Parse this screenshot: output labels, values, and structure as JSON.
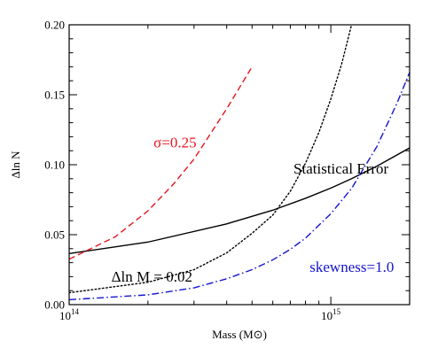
{
  "chart_data": {
    "type": "line",
    "title": "",
    "xlabel": "Mass (M⊙)",
    "ylabel": "Δln N",
    "xscale": "log",
    "xlim": [
      100000000000000.0,
      2000000000000000.0
    ],
    "ylim": [
      0.0,
      0.2
    ],
    "grid": false,
    "legend": "none",
    "x_ticks": [
      {
        "value": 100000000000000.0,
        "mantissa": "10",
        "exponent": "14"
      },
      {
        "value": 1000000000000000.0,
        "mantissa": "10",
        "exponent": "15"
      }
    ],
    "y_ticks": [
      {
        "value": 0.0,
        "label": "0.00"
      },
      {
        "value": 0.05,
        "label": "0.05"
      },
      {
        "value": 0.1,
        "label": "0.10"
      },
      {
        "value": 0.15,
        "label": "0.15"
      },
      {
        "value": 0.2,
        "label": "0.20"
      }
    ],
    "series": [
      {
        "color": "#000000",
        "dash": "solid",
        "x": [
          100000000000000.0,
          200000000000000.0,
          400000000000000.0,
          600000000000000.0,
          800000000000000.0,
          1000000000000000.0,
          1200000000000000.0,
          1500000000000000.0,
          2000000000000000.0
        ],
        "y": [
          0.0365,
          0.0447,
          0.0577,
          0.0675,
          0.076,
          0.0833,
          0.09,
          0.099,
          0.112
        ]
      },
      {
        "color": "#e8141e",
        "dash": "dashed",
        "x": [
          100000000000000.0,
          150000000000000.0,
          200000000000000.0,
          250000000000000.0,
          300000000000000.0,
          400000000000000.0,
          500000000000000.0
        ],
        "y": [
          0.0325,
          0.0485,
          0.067,
          0.086,
          0.104,
          0.14,
          0.17
        ]
      },
      {
        "color": "#000000",
        "dash": "dotted",
        "x": [
          100000000000000.0,
          200000000000000.0,
          300000000000000.0,
          400000000000000.0,
          500000000000000.0,
          600000000000000.0,
          700000000000000.0,
          800000000000000.0,
          900000000000000.0,
          1000000000000000.0,
          1100000000000000.0,
          1200000000000000.0
        ],
        "y": [
          0.0085,
          0.016,
          0.025,
          0.037,
          0.051,
          0.064,
          0.081,
          0.101,
          0.123,
          0.147,
          0.172,
          0.2
        ]
      },
      {
        "color": "#1414d2",
        "dash": "dash-dot",
        "x": [
          100000000000000.0,
          200000000000000.0,
          300000000000000.0,
          400000000000000.0,
          500000000000000.0,
          600000000000000.0,
          700000000000000.0,
          800000000000000.0,
          1000000000000000.0,
          1200000000000000.0,
          1500000000000000.0,
          1800000000000000.0,
          2000000000000000.0
        ],
        "y": [
          0.0035,
          0.007,
          0.012,
          0.0185,
          0.025,
          0.032,
          0.0395,
          0.0475,
          0.065,
          0.083,
          0.113,
          0.145,
          0.166
        ]
      }
    ],
    "annotations": [
      {
        "text": "σ=0.25",
        "color": "#e8141e",
        "x": 210000000000000.0,
        "y": 0.1125
      },
      {
        "text": "Statistical Error",
        "color": "#000000",
        "x": 720000000000000.0,
        "y": 0.0938
      },
      {
        "text": "Δln M = 0.02",
        "color": "#000000",
        "x": 145000000000000.0,
        "y": 0.0165
      },
      {
        "text": "skewness=1.0",
        "color": "#1414d2",
        "x": 830000000000000.0,
        "y": 0.0235
      }
    ]
  }
}
